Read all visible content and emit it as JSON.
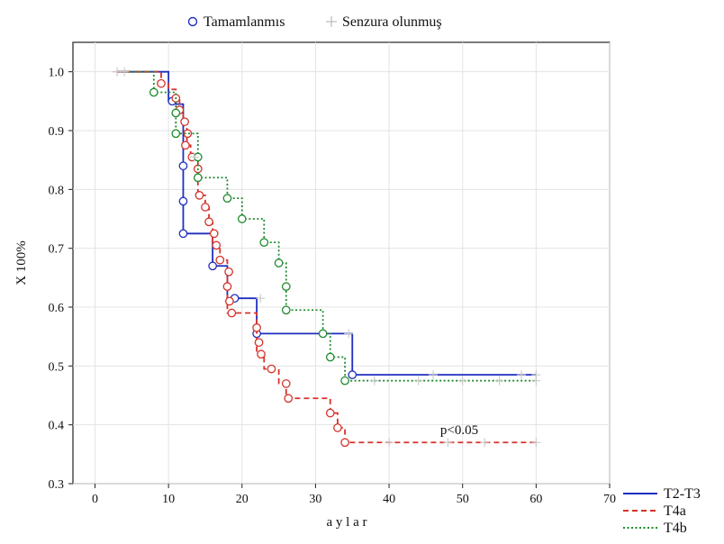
{
  "chart_data": {
    "type": "line",
    "xlabel": "a y l a r",
    "ylabel": "X 100%",
    "xlim": [
      -3,
      70
    ],
    "ylim": [
      0.3,
      1.05
    ],
    "xticks": [
      0,
      10,
      20,
      30,
      40,
      50,
      60,
      70
    ],
    "yticks": [
      0.3,
      0.4,
      0.5,
      0.6,
      0.7,
      0.8,
      0.9,
      1.0
    ],
    "grid": true,
    "top_legend": {
      "completed_label": "Tamamlanmıs",
      "censored_label": "Senzura olunmuş"
    },
    "annotation": "p<0.05",
    "series": [
      {
        "name": "T2-T3",
        "color": "#1f2fbf",
        "dash": "solid",
        "steps": [
          [
            3,
            1.0
          ],
          [
            10,
            0.95
          ],
          [
            11,
            0.945
          ],
          [
            12,
            0.84
          ],
          [
            12,
            0.78
          ],
          [
            12,
            0.725
          ],
          [
            16,
            0.67
          ],
          [
            18,
            0.615
          ],
          [
            22,
            0.555
          ],
          [
            35,
            0.485
          ],
          [
            60,
            0.485
          ]
        ],
        "events": [
          [
            10.5,
            0.95
          ],
          [
            12,
            0.84
          ],
          [
            12,
            0.78
          ],
          [
            12,
            0.725
          ],
          [
            16,
            0.67
          ],
          [
            19,
            0.615
          ],
          [
            22,
            0.555
          ],
          [
            35,
            0.485
          ]
        ],
        "censored": [
          [
            3,
            1.0
          ],
          [
            22.5,
            0.615
          ],
          [
            34.5,
            0.555
          ],
          [
            46,
            0.485
          ],
          [
            58,
            0.485
          ],
          [
            60,
            0.485
          ]
        ]
      },
      {
        "name": "T4a",
        "color": "#d6322a",
        "dash": "dashed",
        "steps": [
          [
            3,
            1.0
          ],
          [
            9,
            0.98
          ],
          [
            10,
            0.97
          ],
          [
            11,
            0.955
          ],
          [
            11.5,
            0.935
          ],
          [
            12,
            0.915
          ],
          [
            12.5,
            0.895
          ],
          [
            12.5,
            0.875
          ],
          [
            13,
            0.855
          ],
          [
            14,
            0.835
          ],
          [
            14,
            0.79
          ],
          [
            15,
            0.77
          ],
          [
            15.5,
            0.745
          ],
          [
            16,
            0.725
          ],
          [
            16,
            0.705
          ],
          [
            17,
            0.68
          ],
          [
            18,
            0.66
          ],
          [
            18,
            0.635
          ],
          [
            18,
            0.61
          ],
          [
            18,
            0.59
          ],
          [
            22,
            0.565
          ],
          [
            22,
            0.54
          ],
          [
            22,
            0.52
          ],
          [
            23,
            0.495
          ],
          [
            25,
            0.47
          ],
          [
            26,
            0.445
          ],
          [
            32,
            0.42
          ],
          [
            33,
            0.395
          ],
          [
            34,
            0.37
          ],
          [
            60,
            0.37
          ]
        ],
        "events": [
          [
            9,
            0.98
          ],
          [
            11,
            0.955
          ],
          [
            11.5,
            0.935
          ],
          [
            12.2,
            0.915
          ],
          [
            12.6,
            0.895
          ],
          [
            12.3,
            0.875
          ],
          [
            13.2,
            0.855
          ],
          [
            14,
            0.835
          ],
          [
            14.2,
            0.79
          ],
          [
            15,
            0.77
          ],
          [
            15.5,
            0.745
          ],
          [
            16.2,
            0.725
          ],
          [
            16.5,
            0.705
          ],
          [
            17,
            0.68
          ],
          [
            18.2,
            0.66
          ],
          [
            18,
            0.635
          ],
          [
            18.3,
            0.61
          ],
          [
            18.6,
            0.59
          ],
          [
            22,
            0.565
          ],
          [
            22.3,
            0.54
          ],
          [
            22.6,
            0.52
          ],
          [
            24,
            0.495
          ],
          [
            26,
            0.47
          ],
          [
            26.3,
            0.445
          ],
          [
            32,
            0.42
          ],
          [
            33,
            0.395
          ],
          [
            34,
            0.37
          ]
        ],
        "censored": [
          [
            3,
            1.0
          ],
          [
            40,
            0.37
          ],
          [
            48,
            0.37
          ],
          [
            53,
            0.37
          ],
          [
            60,
            0.37
          ]
        ]
      },
      {
        "name": "T4b",
        "color": "#1e8a2e",
        "dash": "dotted",
        "steps": [
          [
            4,
            1.0
          ],
          [
            8,
            0.965
          ],
          [
            11,
            0.93
          ],
          [
            11,
            0.895
          ],
          [
            14,
            0.855
          ],
          [
            14,
            0.82
          ],
          [
            18,
            0.785
          ],
          [
            20,
            0.75
          ],
          [
            23,
            0.71
          ],
          [
            25,
            0.675
          ],
          [
            26,
            0.635
          ],
          [
            26,
            0.595
          ],
          [
            31,
            0.555
          ],
          [
            32,
            0.515
          ],
          [
            34,
            0.475
          ],
          [
            60,
            0.475
          ]
        ],
        "events": [
          [
            8,
            0.965
          ],
          [
            11,
            0.93
          ],
          [
            11,
            0.895
          ],
          [
            14,
            0.855
          ],
          [
            14,
            0.82
          ],
          [
            18,
            0.785
          ],
          [
            20,
            0.75
          ],
          [
            23,
            0.71
          ],
          [
            25,
            0.675
          ],
          [
            26,
            0.635
          ],
          [
            26,
            0.595
          ],
          [
            31,
            0.555
          ],
          [
            32,
            0.515
          ],
          [
            34,
            0.475
          ]
        ],
        "censored": [
          [
            4,
            1.0
          ],
          [
            13.5,
            0.855
          ],
          [
            38,
            0.475
          ],
          [
            44,
            0.475
          ],
          [
            50,
            0.475
          ],
          [
            55,
            0.475
          ],
          [
            60,
            0.475
          ]
        ]
      }
    ],
    "legend_placement": "bottom-right"
  }
}
